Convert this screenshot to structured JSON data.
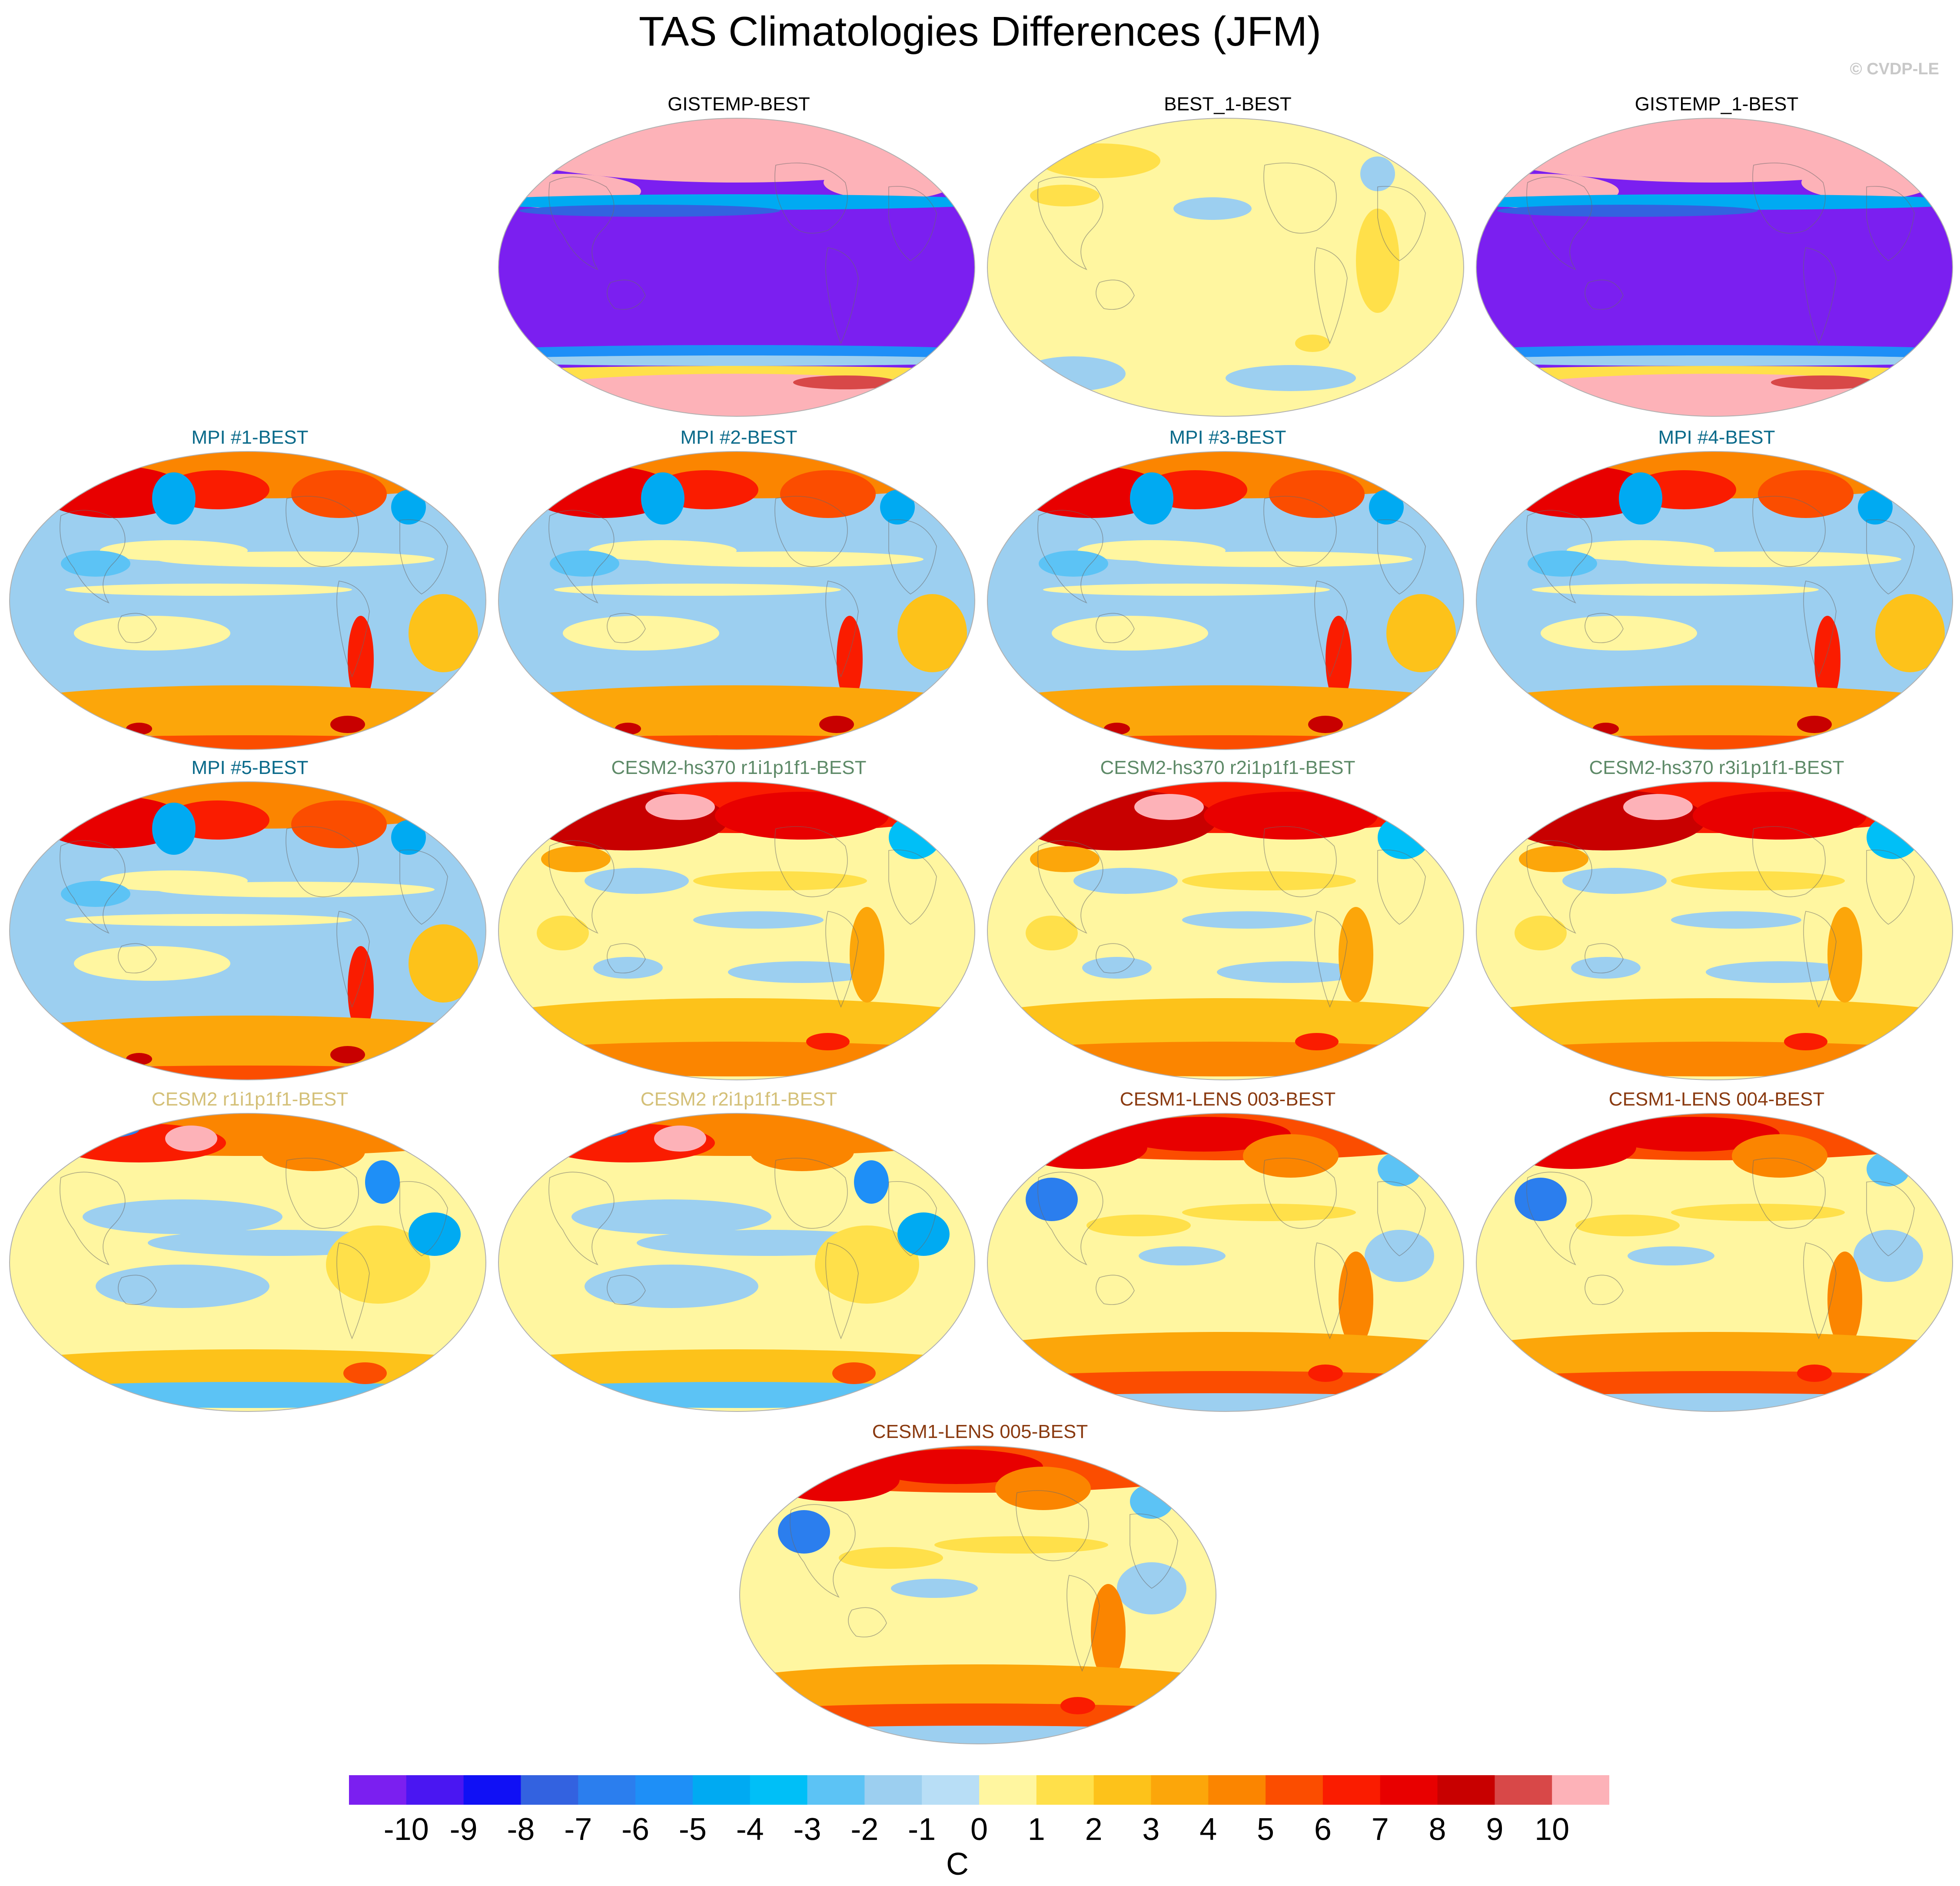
{
  "title": "TAS Climatologies Differences (JFM)",
  "credit": "© CVDP-LE",
  "panels": [
    {
      "label": "GISTEMP-BEST",
      "color": "#000000",
      "pattern": "obs"
    },
    {
      "label": "BEST_1-BEST",
      "color": "#000000",
      "pattern": "flat"
    },
    {
      "label": "GISTEMP_1-BEST",
      "color": "#000000",
      "pattern": "obs"
    },
    {
      "label": "MPI #1-BEST",
      "color": "#0a6a8a",
      "pattern": "mpi"
    },
    {
      "label": "MPI #2-BEST",
      "color": "#0a6a8a",
      "pattern": "mpi"
    },
    {
      "label": "MPI #3-BEST",
      "color": "#0a6a8a",
      "pattern": "mpi"
    },
    {
      "label": "MPI #4-BEST",
      "color": "#0a6a8a",
      "pattern": "mpi"
    },
    {
      "label": "MPI #5-BEST",
      "color": "#0a6a8a",
      "pattern": "mpi"
    },
    {
      "label": "CESM2-hs370 r1i1p1f1-BEST",
      "color": "#5e8a68",
      "pattern": "cesm2hs"
    },
    {
      "label": "CESM2-hs370 r2i1p1f1-BEST",
      "color": "#5e8a68",
      "pattern": "cesm2hs"
    },
    {
      "label": "CESM2-hs370 r3i1p1f1-BEST",
      "color": "#5e8a68",
      "pattern": "cesm2hs"
    },
    {
      "label": "CESM2 r1i1p1f1-BEST",
      "color": "#d4c078",
      "pattern": "cesm2"
    },
    {
      "label": "CESM2 r2i1p1f1-BEST",
      "color": "#d4c078",
      "pattern": "cesm2"
    },
    {
      "label": "CESM1-LENS 003-BEST",
      "color": "#8a3a10",
      "pattern": "lens"
    },
    {
      "label": "CESM1-LENS 004-BEST",
      "color": "#8a3a10",
      "pattern": "lens"
    },
    {
      "label": "CESM1-LENS 005-BEST",
      "color": "#8a3a10",
      "pattern": "lens"
    }
  ],
  "colorbar": {
    "units": "C",
    "labels": [
      "-10",
      "-9",
      "-8",
      "-7",
      "-6",
      "-5",
      "-4",
      "-3",
      "-2",
      "-1",
      "0",
      "1",
      "2",
      "3",
      "4",
      "5",
      "6",
      "7",
      "8",
      "9",
      "10"
    ],
    "colors": [
      "#7b1ff0",
      "#4a16f2",
      "#1010f5",
      "#3362e0",
      "#2b7eee",
      "#1e8ff7",
      "#00aaf2",
      "#00bff7",
      "#5cc3f5",
      "#9ccff0",
      "#b8def6",
      "#fff6a0",
      "#ffe04a",
      "#fdc21a",
      "#fca60a",
      "#fb8500",
      "#fb4d00",
      "#fa1c00",
      "#e80000",
      "#c80000",
      "#d84848",
      "#fdb2b8"
    ]
  }
}
